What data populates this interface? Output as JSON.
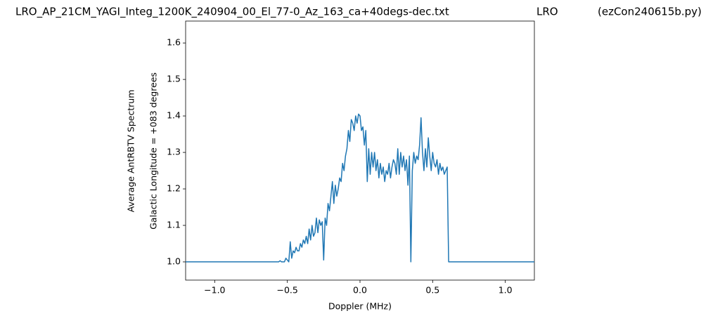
{
  "chart_data": {
    "type": "line",
    "title_parts": [
      "LRO_AP_21CM_YAGI_Integ_1200K_240904_00_El_77-0_Az_163_ca+40degs-dec.txt",
      "LRO",
      "(ezCon240615b.py)"
    ],
    "xlabel": "Doppler (MHz)",
    "ylabel": [
      "Average AntRBTV Spectrum",
      "Galactic Longitude = +083 degrees"
    ],
    "color": "#1f77b4",
    "xlim": [
      -1.2,
      1.2
    ],
    "ylim": [
      0.95,
      1.66
    ],
    "xticks": [
      {
        "value": -1.0,
        "label": "−1.0"
      },
      {
        "value": -0.5,
        "label": "−0.5"
      },
      {
        "value": 0,
        "label": "0.0"
      },
      0.5,
      {
        "value": 1.0,
        "label": "1.0"
      }
    ],
    "yticks": [
      {
        "value": 1.0,
        "label": "1.0"
      },
      1.1,
      1.2,
      1.3,
      1.4,
      1.5,
      1.6
    ],
    "x": [
      -1.2,
      -0.56,
      -0.55,
      -0.54,
      -0.53,
      -0.52,
      -0.51,
      -0.5,
      -0.49,
      -0.48,
      -0.47,
      -0.46,
      -0.45,
      -0.44,
      -0.43,
      -0.42,
      -0.41,
      -0.4,
      -0.39,
      -0.38,
      -0.37,
      -0.36,
      -0.35,
      -0.34,
      -0.33,
      -0.32,
      -0.31,
      -0.3,
      -0.29,
      -0.28,
      -0.27,
      -0.26,
      -0.25,
      -0.24,
      -0.23,
      -0.22,
      -0.21,
      -0.2,
      -0.19,
      -0.18,
      -0.17,
      -0.16,
      -0.15,
      -0.14,
      -0.13,
      -0.12,
      -0.11,
      -0.1,
      -0.09,
      -0.08,
      -0.07,
      -0.06,
      -0.05,
      -0.04,
      -0.03,
      -0.02,
      -0.01,
      0.0,
      0.01,
      0.02,
      0.03,
      0.04,
      0.05,
      0.06,
      0.07,
      0.08,
      0.09,
      0.1,
      0.11,
      0.12,
      0.13,
      0.14,
      0.15,
      0.16,
      0.17,
      0.18,
      0.19,
      0.2,
      0.21,
      0.22,
      0.23,
      0.24,
      0.25,
      0.26,
      0.27,
      0.28,
      0.29,
      0.3,
      0.31,
      0.32,
      0.33,
      0.34,
      0.35,
      0.36,
      0.37,
      0.38,
      0.39,
      0.4,
      0.41,
      0.42,
      0.43,
      0.44,
      0.45,
      0.46,
      0.47,
      0.48,
      0.49,
      0.5,
      0.51,
      0.52,
      0.53,
      0.54,
      0.55,
      0.56,
      0.57,
      0.58,
      0.59,
      0.6,
      0.61,
      1.2
    ],
    "values": [
      1.0,
      1.0,
      1.003,
      1.0,
      1.0,
      1.0,
      1.01,
      1.005,
      1.0,
      1.055,
      1.01,
      1.03,
      1.025,
      1.04,
      1.03,
      1.03,
      1.05,
      1.04,
      1.06,
      1.05,
      1.07,
      1.05,
      1.09,
      1.06,
      1.1,
      1.07,
      1.08,
      1.12,
      1.08,
      1.115,
      1.1,
      1.11,
      1.005,
      1.12,
      1.1,
      1.16,
      1.14,
      1.18,
      1.22,
      1.16,
      1.21,
      1.18,
      1.2,
      1.23,
      1.22,
      1.27,
      1.25,
      1.29,
      1.31,
      1.36,
      1.33,
      1.39,
      1.38,
      1.36,
      1.4,
      1.38,
      1.405,
      1.4,
      1.36,
      1.37,
      1.32,
      1.36,
      1.22,
      1.31,
      1.24,
      1.3,
      1.26,
      1.3,
      1.25,
      1.28,
      1.23,
      1.27,
      1.24,
      1.26,
      1.22,
      1.25,
      1.24,
      1.27,
      1.23,
      1.26,
      1.28,
      1.27,
      1.24,
      1.31,
      1.24,
      1.3,
      1.26,
      1.29,
      1.25,
      1.28,
      1.21,
      1.29,
      1.0,
      1.25,
      1.3,
      1.27,
      1.29,
      1.28,
      1.32,
      1.395,
      1.3,
      1.25,
      1.31,
      1.26,
      1.34,
      1.29,
      1.25,
      1.3,
      1.27,
      1.26,
      1.28,
      1.24,
      1.27,
      1.25,
      1.26,
      1.24,
      1.25,
      1.26,
      1.0,
      1.0
    ]
  }
}
